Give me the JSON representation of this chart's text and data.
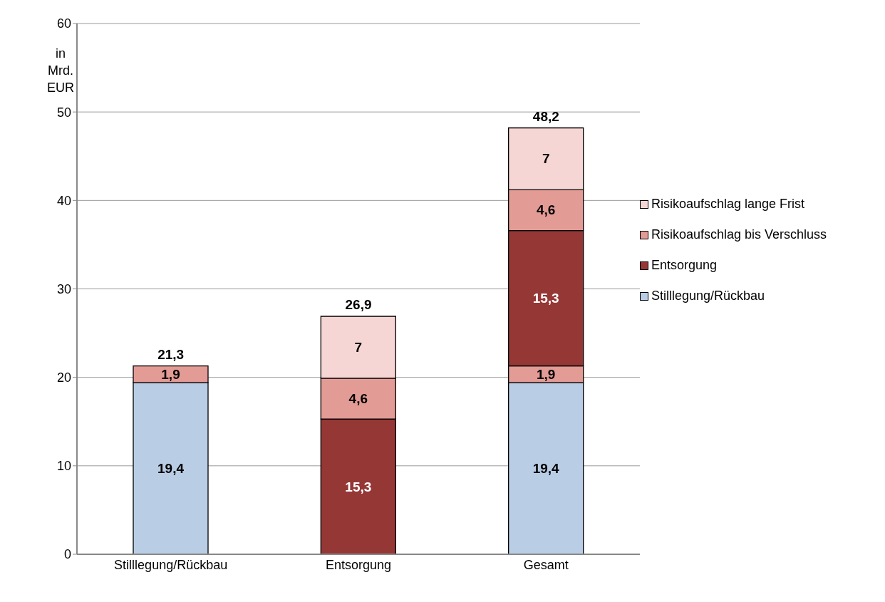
{
  "chart_data": {
    "type": "bar",
    "stacked": true,
    "ylabel": "in Mrd. EUR",
    "categories": [
      "Stilllegung/Rückbau",
      "Entsorgung",
      "Gesamt"
    ],
    "series": [
      {
        "name": "Stilllegung/Rückbau",
        "color": "#b9cde5",
        "values": [
          19.4,
          null,
          19.4
        ],
        "value_labels": [
          "19,4",
          null,
          "19,4"
        ]
      },
      {
        "color": "#e39b95",
        "values": [
          1.9,
          null,
          1.9
        ],
        "value_labels": [
          "1,9",
          null,
          "1,9"
        ]
      },
      {
        "name": "Entsorgung",
        "color": "#953735",
        "values": [
          null,
          15.3,
          15.3
        ],
        "value_labels": [
          null,
          "15,3",
          "15,3"
        ]
      },
      {
        "name": "Risikoaufschlag bis Verschluss",
        "color": "#e39b95",
        "values": [
          null,
          4.6,
          4.6
        ],
        "value_labels": [
          null,
          "4,6",
          "4,6"
        ]
      },
      {
        "name": "Risikoaufschlag lange Frist",
        "color": "#f6d6d4",
        "values": [
          null,
          7,
          7
        ],
        "value_labels": [
          null,
          "7",
          "7"
        ]
      }
    ],
    "totals": [
      "21,3",
      "26,9",
      "48,2"
    ],
    "ylim": [
      0,
      60
    ],
    "yticks": [
      0,
      10,
      20,
      30,
      40,
      50,
      60
    ],
    "grid": "y",
    "legend": "right"
  }
}
